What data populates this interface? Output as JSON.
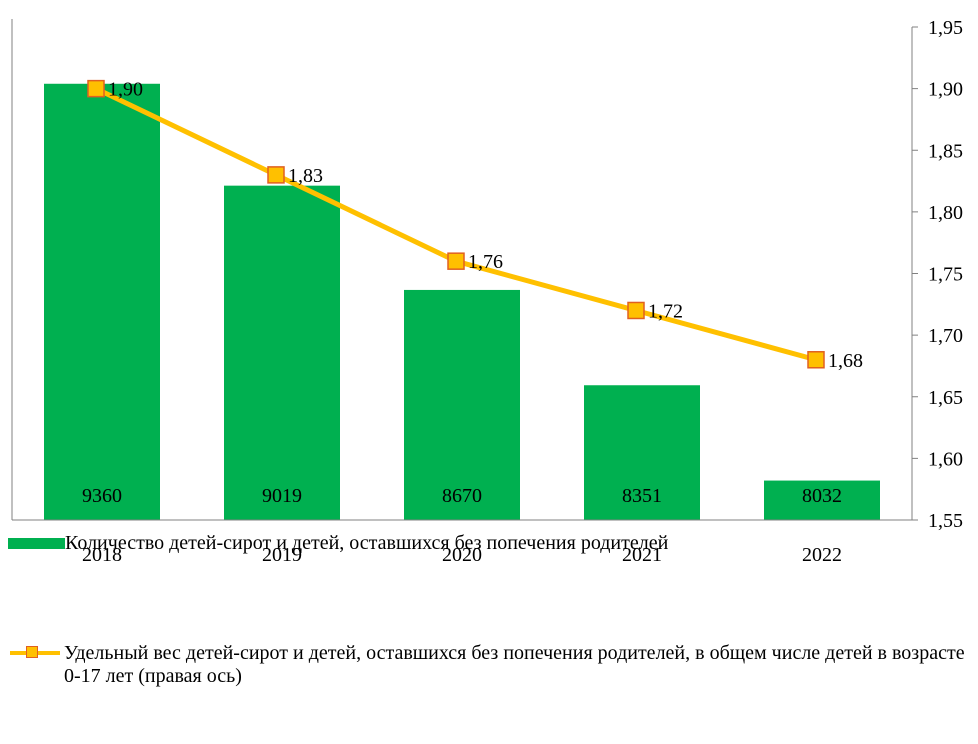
{
  "chart_data": {
    "type": "bar+line",
    "categories": [
      "2018",
      "2019",
      "2020",
      "2021",
      "2022"
    ],
    "series": [
      {
        "name": "Количество детей-сирот и детей, оставшихся без попечения родителей",
        "type": "bar",
        "axis": "left",
        "values": [
          9360,
          9019,
          8670,
          8351,
          8032
        ],
        "labels": [
          "9360",
          "9019",
          "8670",
          "8351",
          "8032"
        ],
        "color": "#00b050"
      },
      {
        "name": "Удельный вес детей-сирот и детей, оставшихся без попечения родителей, в общем числе детей в возрасте 0-17 лет (правая ось)",
        "type": "line",
        "axis": "right",
        "values": [
          1.9,
          1.83,
          1.76,
          1.72,
          1.68
        ],
        "labels": [
          "1,90",
          "1,83",
          "1,76",
          "1,72",
          "1,68"
        ],
        "color": "#ffc000",
        "marker": "square",
        "marker_border_color": "#e06020"
      }
    ],
    "y_left": {
      "ylim": [
        7900,
        9550
      ],
      "visible": false
    },
    "y_right": {
      "ylim": [
        1.55,
        1.95
      ],
      "ticks": [
        1.55,
        1.6,
        1.65,
        1.7,
        1.75,
        1.8,
        1.85,
        1.9,
        1.95
      ],
      "tick_labels": [
        "1,55",
        "1,60",
        "1,65",
        "1,70",
        "1,75",
        "1,80",
        "1,85",
        "1,90",
        "1,95"
      ]
    },
    "grid": false,
    "legend_position": "bottom",
    "title": "",
    "xlabel": "",
    "ylabel": ""
  },
  "legend": {
    "bar_label": "Количество детей-сирот и детей, оставшихся без попечения родителей",
    "line_label": "Удельный вес детей-сирот и детей, оставшихся без попечения родителей, в общем числе детей в возрасте 0-17 лет (правая ось)"
  },
  "colors": {
    "bar": "#00b050",
    "line": "#ffc000",
    "marker_border": "#e06020",
    "axis": "#808080"
  }
}
